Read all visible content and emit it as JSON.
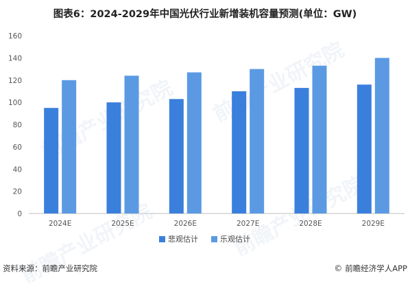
{
  "title": "图表6：2024-2029年中国光伏行业新增装机容量预测(单位：GW)",
  "footer": {
    "source": "资料来源：前瞻产业研究院",
    "brand_mark": "©",
    "brand": "前瞻经济学人APP"
  },
  "watermark_text": "前瞻产业研究院",
  "colors": {
    "pessimistic": "#3a7fdc",
    "optimistic": "#5b9ae3"
  },
  "chart_data": {
    "type": "bar",
    "title": "图表6：2024-2029年中国光伏行业新增装机容量预测(单位：GW)",
    "categories": [
      "2024E",
      "2025E",
      "2026E",
      "2027E",
      "2028E",
      "2029E"
    ],
    "series": [
      {
        "name": "悲观估计",
        "values": [
          95,
          100,
          103,
          110,
          113,
          116
        ]
      },
      {
        "name": "乐观估计",
        "values": [
          120,
          124,
          127,
          130,
          133,
          140
        ]
      }
    ],
    "ylim": [
      0,
      160
    ],
    "yticks": [
      0,
      20,
      40,
      60,
      80,
      100,
      120,
      140,
      160
    ],
    "grid": false,
    "legend": "bottom-center"
  }
}
